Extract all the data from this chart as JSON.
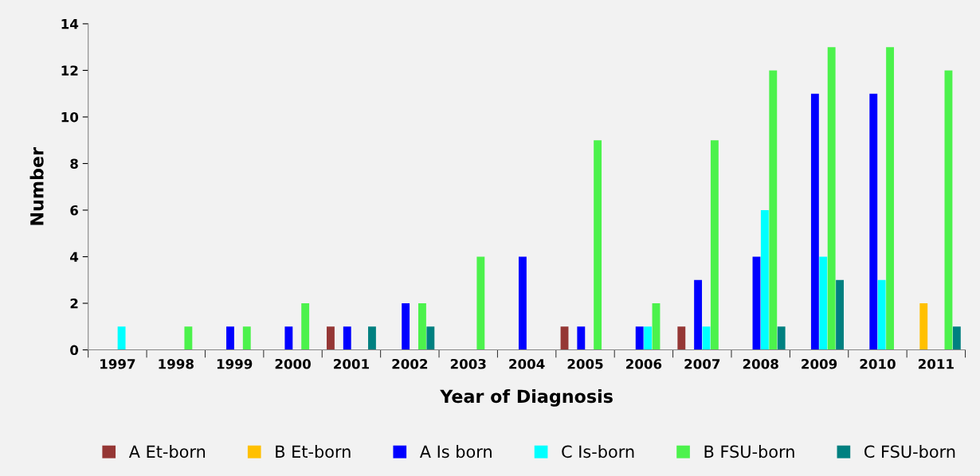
{
  "chart_data": {
    "type": "bar",
    "xlabel": "Year of Diagnosis",
    "ylabel": "Number",
    "categories": [
      "1997",
      "1998",
      "1999",
      "2000",
      "2001",
      "2002",
      "2003",
      "2004",
      "2005",
      "2006",
      "2007",
      "2008",
      "2009",
      "2010",
      "2011"
    ],
    "series": [
      {
        "name": "A Et-born",
        "color": "#953735",
        "values": [
          0,
          0,
          0,
          0,
          1,
          0,
          0,
          0,
          1,
          0,
          1,
          0,
          0,
          0,
          0
        ]
      },
      {
        "name": "B Et-born",
        "color": "#ffc000",
        "values": [
          0,
          0,
          0,
          0,
          0,
          0,
          0,
          0,
          0,
          0,
          0,
          0,
          0,
          0,
          2
        ]
      },
      {
        "name": "A Is born",
        "color": "#0000ff",
        "values": [
          0,
          0,
          1,
          1,
          1,
          2,
          0,
          4,
          1,
          1,
          3,
          4,
          11,
          11,
          0
        ]
      },
      {
        "name": "C Is-born",
        "color": "#00ffff",
        "values": [
          1,
          0,
          0,
          0,
          0,
          0,
          0,
          0,
          0,
          1,
          1,
          6,
          4,
          3,
          0
        ]
      },
      {
        "name": "B FSU-born",
        "color": "#4cf24c",
        "values": [
          0,
          1,
          1,
          2,
          0,
          2,
          4,
          0,
          9,
          2,
          9,
          12,
          13,
          13,
          12
        ]
      },
      {
        "name": "C FSU-born",
        "color": "#008080",
        "values": [
          0,
          0,
          0,
          0,
          1,
          1,
          0,
          0,
          0,
          0,
          0,
          1,
          3,
          0,
          1
        ]
      }
    ],
    "ylim": [
      0,
      14
    ],
    "yticks": [
      0,
      2,
      4,
      6,
      8,
      10,
      12,
      14
    ],
    "grid": false,
    "legend": "bottom"
  }
}
